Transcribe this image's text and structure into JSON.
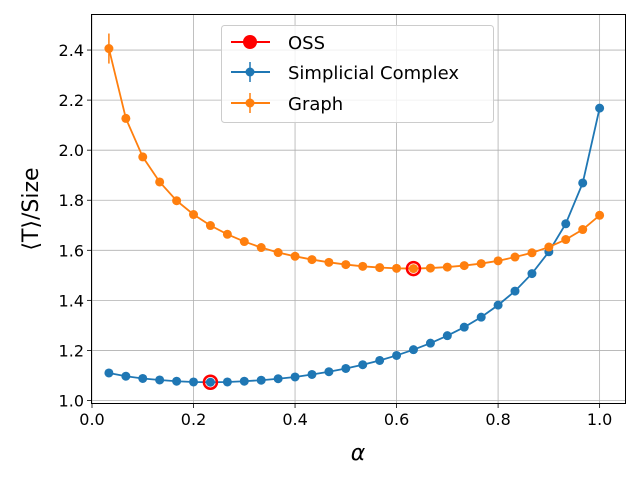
{
  "chart_data": {
    "type": "line",
    "title": "",
    "xlabel": "α",
    "ylabel": "⟨T⟩/Size",
    "xlim": [
      -0.0,
      1.05
    ],
    "ylim": [
      0.99,
      2.54
    ],
    "xticks": [
      0.0,
      0.2,
      0.4,
      0.6,
      0.8,
      1.0
    ],
    "xtick_labels": [
      "0.0",
      "0.2",
      "0.4",
      "0.6",
      "0.8",
      "1.0"
    ],
    "yticks": [
      1.0,
      1.2,
      1.4,
      1.6,
      1.8,
      2.0,
      2.2,
      2.4
    ],
    "ytick_labels": [
      "1.0",
      "1.2",
      "1.4",
      "1.6",
      "1.8",
      "2.0",
      "2.2",
      "2.4"
    ],
    "grid": true,
    "legend_position": "top-center",
    "series": [
      {
        "name": "Simplicial Complex",
        "color": "#1f77b4",
        "x": [
          0.0333,
          0.0667,
          0.1,
          0.1333,
          0.1667,
          0.2,
          0.2333,
          0.2667,
          0.3,
          0.3333,
          0.3667,
          0.4,
          0.4333,
          0.4667,
          0.5,
          0.5333,
          0.5667,
          0.6,
          0.6333,
          0.6667,
          0.7,
          0.7333,
          0.7667,
          0.8,
          0.8333,
          0.8667,
          0.9,
          0.9333,
          0.9667,
          1.0
        ],
        "y": [
          1.11,
          1.097,
          1.088,
          1.082,
          1.077,
          1.074,
          1.073,
          1.074,
          1.077,
          1.081,
          1.087,
          1.094,
          1.104,
          1.115,
          1.128,
          1.143,
          1.16,
          1.18,
          1.203,
          1.229,
          1.259,
          1.293,
          1.333,
          1.381,
          1.437,
          1.507,
          1.594,
          1.706,
          1.869,
          2.168
        ],
        "yerr": [
          0.008,
          0.006,
          0.005,
          0.004,
          0.004,
          0.004,
          0.004,
          0.004,
          0.004,
          0.004,
          0.004,
          0.004,
          0.004,
          0.004,
          0.004,
          0.004,
          0.004,
          0.004,
          0.004,
          0.004,
          0.004,
          0.004,
          0.004,
          0.005,
          0.005,
          0.005,
          0.006,
          0.007,
          0.008,
          0.01
        ]
      },
      {
        "name": "Graph",
        "color": "#ff7f0e",
        "x": [
          0.0333,
          0.0667,
          0.1,
          0.1333,
          0.1667,
          0.2,
          0.2333,
          0.2667,
          0.3,
          0.3333,
          0.3667,
          0.4,
          0.4333,
          0.4667,
          0.5,
          0.5333,
          0.5667,
          0.6,
          0.6333,
          0.6667,
          0.7,
          0.7333,
          0.7667,
          0.8,
          0.8333,
          0.8667,
          0.9,
          0.9333,
          0.9667,
          1.0
        ],
        "y": [
          2.406,
          2.127,
          1.973,
          1.873,
          1.798,
          1.743,
          1.699,
          1.664,
          1.635,
          1.611,
          1.591,
          1.576,
          1.563,
          1.552,
          1.543,
          1.536,
          1.531,
          1.528,
          1.527,
          1.529,
          1.533,
          1.539,
          1.547,
          1.558,
          1.573,
          1.59,
          1.613,
          1.643,
          1.683,
          1.74
        ],
        "yerr": [
          0.06,
          0.012,
          0.008,
          0.006,
          0.005,
          0.005,
          0.004,
          0.004,
          0.004,
          0.004,
          0.004,
          0.004,
          0.004,
          0.004,
          0.004,
          0.004,
          0.004,
          0.004,
          0.004,
          0.004,
          0.004,
          0.004,
          0.004,
          0.004,
          0.004,
          0.004,
          0.005,
          0.005,
          0.005,
          0.006
        ]
      }
    ],
    "oss": {
      "name": "OSS",
      "color": "#ff0000",
      "points": [
        {
          "x": 0.2333,
          "y": 1.073
        },
        {
          "x": 0.6333,
          "y": 1.527
        }
      ]
    }
  }
}
